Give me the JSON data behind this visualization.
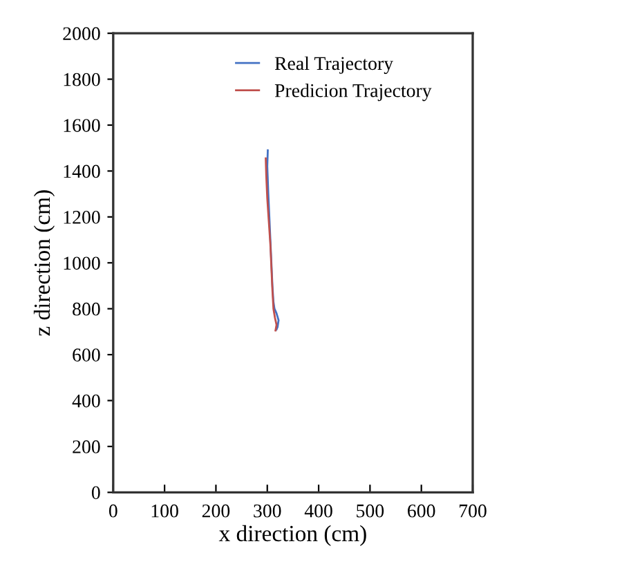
{
  "chart_data": {
    "type": "line",
    "xlabel": "x direction (cm)",
    "ylabel": "z direction (cm)",
    "xlim": [
      0,
      700
    ],
    "xticks": [
      0,
      100,
      200,
      300,
      400,
      500,
      600,
      700
    ],
    "ylim": [
      0,
      2000
    ],
    "yticks": [
      0,
      200,
      400,
      600,
      800,
      1000,
      1200,
      1400,
      1600,
      1800,
      2000
    ],
    "grid": false,
    "legend": "top right",
    "marker": "none",
    "line_style": "solid",
    "series": [
      {
        "name": "Real Trajectory",
        "color": "#4472c4",
        "x": [
          301,
          300,
          302,
          304,
          306,
          308,
          310,
          312,
          314,
          318,
          322,
          320,
          318
        ],
        "values": [
          1490,
          1420,
          1300,
          1200,
          1100,
          1000,
          900,
          830,
          800,
          780,
          750,
          720,
          710
        ]
      },
      {
        "name": "Predicion Trajectory",
        "color": "#c0504d",
        "x": [
          297,
          298,
          300,
          303,
          306,
          308,
          310,
          312,
          315,
          318,
          316
        ],
        "values": [
          1455,
          1380,
          1280,
          1180,
          1080,
          980,
          880,
          800,
          760,
          730,
          705
        ]
      }
    ]
  }
}
